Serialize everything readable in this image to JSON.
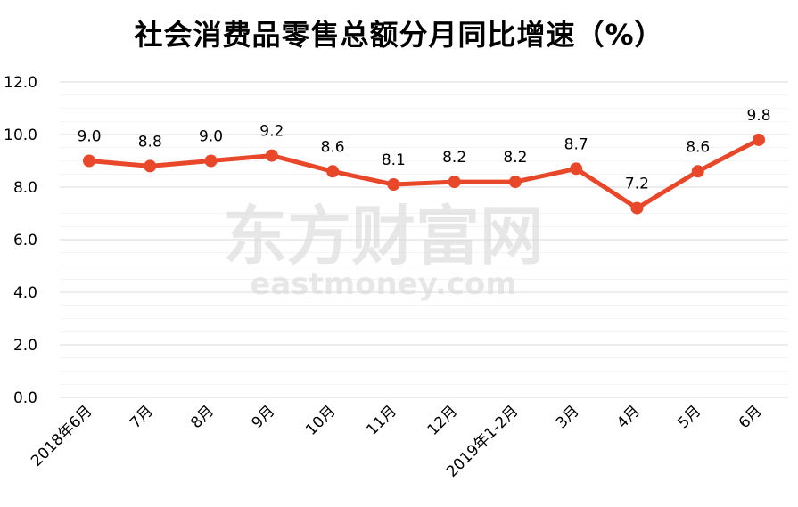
{
  "chart_data": {
    "type": "line",
    "title": "社会消费品零售总额分月同比增速（%）",
    "categories": [
      "2018年6月",
      "7月",
      "8月",
      "9月",
      "10月",
      "11月",
      "12月",
      "2019年1-2月",
      "3月",
      "4月",
      "5月",
      "6月"
    ],
    "series": [
      {
        "values": [
          9.0,
          8.8,
          9.0,
          9.2,
          8.6,
          8.1,
          8.2,
          8.2,
          8.7,
          7.2,
          8.6,
          9.8
        ]
      }
    ],
    "data_labels": [
      "9.0",
      "8.8",
      "9.0",
      "9.2",
      "8.6",
      "8.1",
      "8.2",
      "8.2",
      "8.7",
      "7.2",
      "8.6",
      "9.8"
    ],
    "y_ticks": [
      "0.0",
      "2.0",
      "4.0",
      "6.0",
      "8.0",
      "10.0",
      "12.0"
    ],
    "ylim": [
      0,
      12
    ],
    "grid": true,
    "line_color": "#E8472A",
    "grid_color": "#D9D9D9"
  },
  "watermark": {
    "cn": "东方财富网",
    "en": "eastmoney.com"
  }
}
